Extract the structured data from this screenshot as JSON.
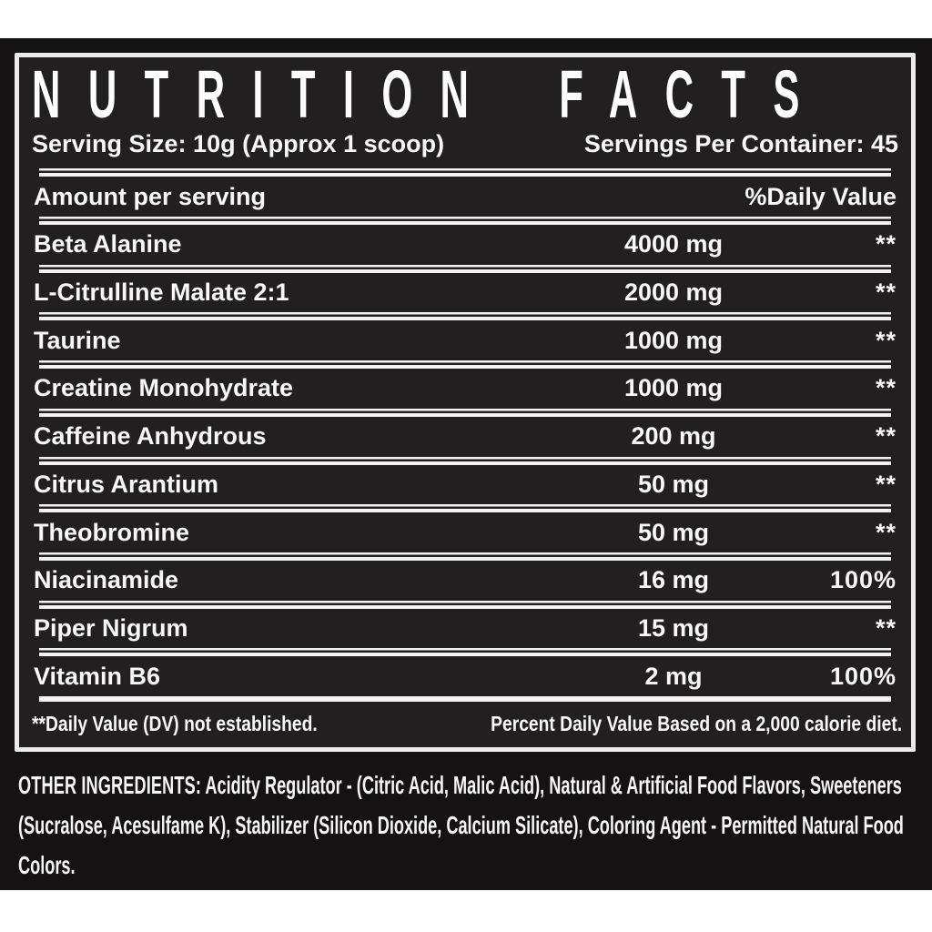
{
  "header": {
    "title": "NUTRITION FACTS",
    "serving_size": "Serving Size: 10g (Approx 1 scoop)",
    "servings_per_container": "Servings Per Container: 45"
  },
  "table": {
    "amount_header": "Amount per serving",
    "dv_header": "%Daily Value",
    "rows": [
      {
        "name": "Beta Alanine",
        "amount": "4000 mg",
        "dv": "**"
      },
      {
        "name": "L-Citrulline Malate 2:1",
        "amount": "2000 mg",
        "dv": "**"
      },
      {
        "name": "Taurine",
        "amount": "1000 mg",
        "dv": "**"
      },
      {
        "name": "Creatine Monohydrate",
        "amount": "1000 mg",
        "dv": "**"
      },
      {
        "name": "Caffeine Anhydrous",
        "amount": "200 mg",
        "dv": "**"
      },
      {
        "name": "Citrus Arantium",
        "amount": "50 mg",
        "dv": "**"
      },
      {
        "name": "Theobromine",
        "amount": "50 mg",
        "dv": "**"
      },
      {
        "name": "Niacinamide",
        "amount": "16 mg",
        "dv": "100%"
      },
      {
        "name": "Piper Nigrum",
        "amount": "15 mg",
        "dv": "**"
      },
      {
        "name": "Vitamin B6",
        "amount": "2 mg",
        "dv": "100%"
      }
    ],
    "footnote_left": "**Daily Value (DV) not established.",
    "footnote_right": "Percent Daily Value Based on a 2,000 calorie diet."
  },
  "other_ingredients": {
    "label": "OTHER INGREDIENTS:",
    "text": " Acidity Regulator - (Citric Acid, Malic Acid), Natural & Artificial Food Flavors, Sweeteners (Sucralose, Acesulfame K), Stabilizer (Silicon Dioxide, Calcium Silicate), Coloring Agent - Permitted Natural Food Colors."
  },
  "colors": {
    "panel_bg": "#151213",
    "box_bg": "#221f20",
    "border_white": "#ececec",
    "text_white": "#f7f7f7"
  }
}
